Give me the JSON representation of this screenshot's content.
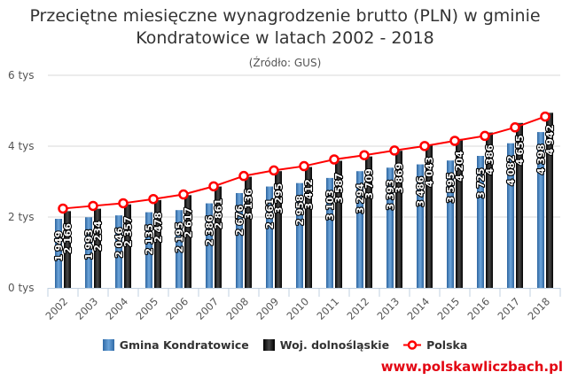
{
  "title_line1": "Przeciętne miesięczne wynagrodzenie brutto (PLN) w gminie",
  "title_line2": "Kondratowice w latach 2002 - 2018",
  "subtitle": "(Źródło: GUS)",
  "watermark": "www.polskawliczbach.pl",
  "legend": [
    {
      "label": "Gmina Kondratowice",
      "color": "#4a86c5"
    },
    {
      "label": "Woj. dolnośląskie",
      "color": "#111111"
    },
    {
      "label": "Polska",
      "color": "#ff0000"
    }
  ],
  "colors": {
    "blue": "#4a86c5",
    "black": "#111111",
    "line": "#ff0000",
    "grid": "#d8d8d8",
    "axis": "#c0d0e0"
  },
  "chart_data": {
    "type": "bar",
    "title": "Przeciętne miesięczne wynagrodzenie brutto (PLN) w gminie Kondratowice w latach 2002 - 2018",
    "subtitle": "(Źródło: GUS)",
    "xlabel": "",
    "ylabel": "",
    "ylim": [
      0,
      6000
    ],
    "yticks": [
      0,
      2000,
      4000,
      6000
    ],
    "ytick_labels": [
      "0 tys",
      "2 tys",
      "4 tys",
      "6 tys"
    ],
    "grid": true,
    "legend_position": "bottom",
    "categories": [
      "2002",
      "2003",
      "2004",
      "2005",
      "2006",
      "2007",
      "2008",
      "2009",
      "2010",
      "2011",
      "2012",
      "2013",
      "2014",
      "2015",
      "2016",
      "2017",
      "2018"
    ],
    "series": [
      {
        "name": "Gmina Kondratowice",
        "type": "bar",
        "values": [
          1949,
          1993,
          2046,
          2135,
          2195,
          2386,
          2676,
          2861,
          2958,
          3103,
          3294,
          3393,
          3486,
          3595,
          3725,
          4082,
          4398
        ]
      },
      {
        "name": "Woj. dolnośląskie",
        "type": "bar",
        "values": [
          2166,
          2234,
          2357,
          2478,
          2617,
          2861,
          3136,
          3295,
          3412,
          3587,
          3709,
          3869,
          4043,
          4204,
          4386,
          4655,
          4942
        ]
      },
      {
        "name": "Polska",
        "type": "line",
        "values": [
          2239,
          2314,
          2389,
          2507,
          2637,
          2866,
          3159,
          3315,
          3436,
          3625,
          3744,
          3877,
          4004,
          4150,
          4290,
          4530,
          4835
        ]
      }
    ]
  }
}
